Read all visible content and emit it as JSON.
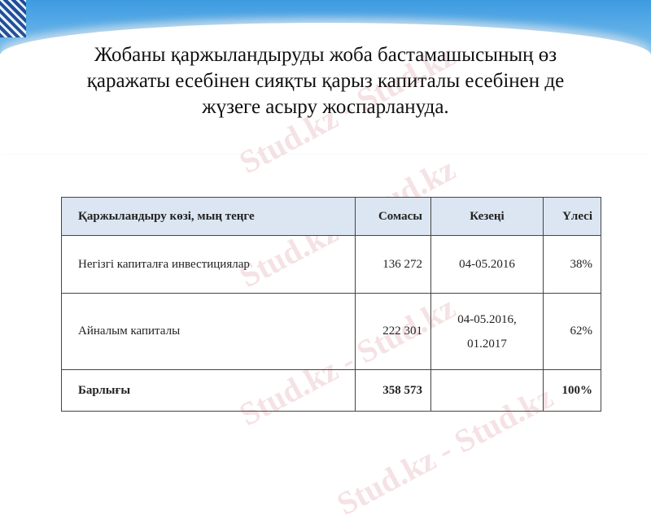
{
  "title": {
    "line1": "Жобаны қаржыландыруды жоба бастамашысының өз",
    "line2": "қаражаты есебінен сияқты  қарыз капиталы есебінен де",
    "line3": "жүзеге асыру жоспарлануда."
  },
  "watermark": "Stud.kz",
  "table": {
    "headers": [
      "Қаржыландыру көзі, мың теңге",
      "Сомасы",
      "Кезеңі",
      "Үлесі"
    ],
    "rows": [
      {
        "source": "Негізгі капиталға инвестициялар",
        "amount": "136 272",
        "period": "04-05.2016",
        "period2": "",
        "share": "38%"
      },
      {
        "source": "Айналым капиталы",
        "amount": "222 301",
        "period": "04-05.2016,",
        "period2": "01.2017",
        "share": "62%"
      }
    ],
    "total": {
      "label": "Барлығы",
      "amount": "358 573",
      "period": "",
      "share": "100%"
    }
  },
  "colors": {
    "header_bg": "#dce6f2",
    "band": "#3d9be0"
  }
}
